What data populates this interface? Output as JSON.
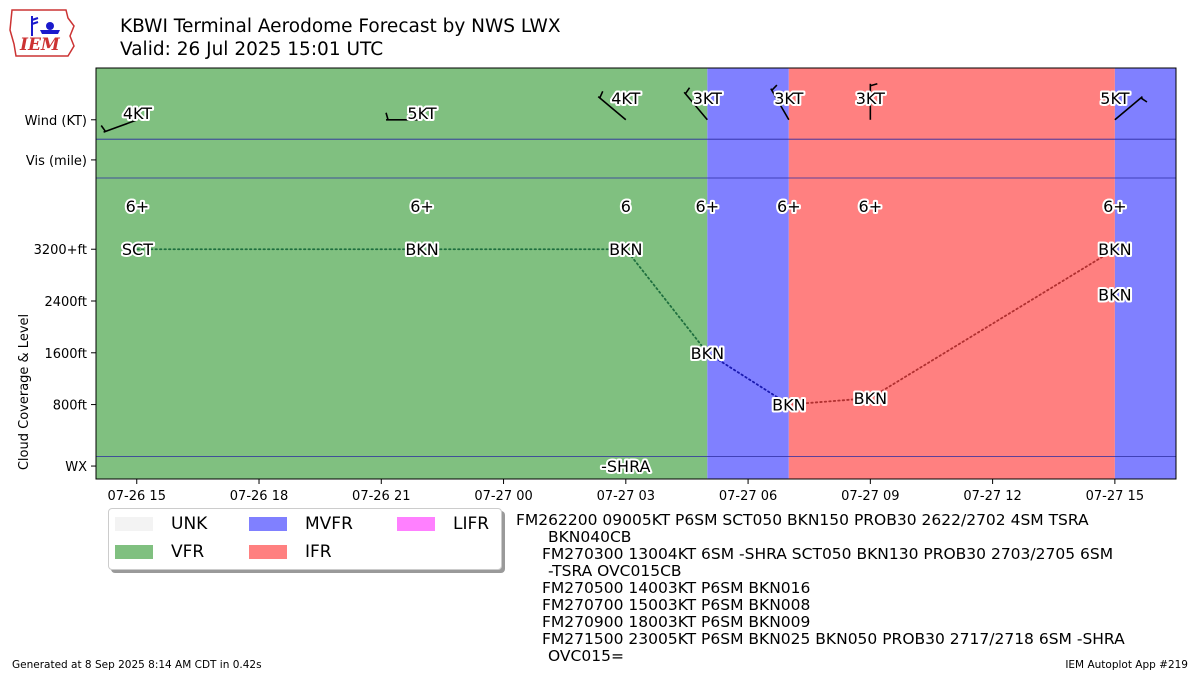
{
  "header": {
    "title": "KBWI Terminal Aerodome Forecast by NWS LWX",
    "subtitle": "Valid: 26 Jul 2025 15:01 UTC",
    "logo_text": "IEM"
  },
  "chart_data": {
    "type": "timeline",
    "x_range": [
      "2025-07-26T14:00",
      "2025-07-27T16:30"
    ],
    "x_ticks": [
      {
        "t": "2025-07-26T15:00",
        "label": "07-26 15"
      },
      {
        "t": "2025-07-26T18:00",
        "label": "07-26 18"
      },
      {
        "t": "2025-07-26T21:00",
        "label": "07-26 21"
      },
      {
        "t": "2025-07-27T00:00",
        "label": "07-27 00"
      },
      {
        "t": "2025-07-27T03:00",
        "label": "07-27 03"
      },
      {
        "t": "2025-07-27T06:00",
        "label": "07-27 06"
      },
      {
        "t": "2025-07-27T09:00",
        "label": "07-27 09"
      },
      {
        "t": "2025-07-27T12:00",
        "label": "07-27 12"
      },
      {
        "t": "2025-07-27T15:00",
        "label": "07-27 15"
      }
    ],
    "y_ticks": [
      {
        "label": "Wind (KT)",
        "value": 5200
      },
      {
        "label": "Vis (mile)",
        "value": 4580
      },
      {
        "label": "3200+ft",
        "value": 3200
      },
      {
        "label": "2400ft",
        "value": 2400
      },
      {
        "label": "1600ft",
        "value": 1600
      },
      {
        "label": "800ft",
        "value": 800
      },
      {
        "label": "WX",
        "value": -150
      }
    ],
    "y_range": [
      -350,
      6000
    ],
    "ylabel": "Cloud Coverage & Level",
    "hlines": [
      4900,
      4300,
      0
    ],
    "category_colors": {
      "UNK": "#f3f3f3",
      "VFR": "#80c080",
      "MVFR": "#8080ff",
      "IFR": "#ff8080",
      "LIFR": "#ff80ff"
    },
    "bands": [
      {
        "start": "2025-07-26T14:00",
        "end": "2025-07-27T05:00",
        "category": "VFR"
      },
      {
        "start": "2025-07-27T05:00",
        "end": "2025-07-27T07:00",
        "category": "MVFR"
      },
      {
        "start": "2025-07-27T07:00",
        "end": "2025-07-27T15:00",
        "category": "IFR"
      },
      {
        "start": "2025-07-27T15:00",
        "end": "2025-07-27T16:30",
        "category": "MVFR"
      }
    ],
    "wind": [
      {
        "t": "2025-07-26T15:01",
        "dir": 250,
        "speed": 4,
        "label": "4KT"
      },
      {
        "t": "2025-07-26T22:00",
        "dir": 270,
        "speed": 5,
        "label": "5KT"
      },
      {
        "t": "2025-07-27T03:00",
        "dir": 310,
        "speed": 4,
        "label": "4KT"
      },
      {
        "t": "2025-07-27T05:00",
        "dir": 320,
        "speed": 3,
        "label": "3KT"
      },
      {
        "t": "2025-07-27T07:00",
        "dir": 330,
        "speed": 3,
        "label": "3KT"
      },
      {
        "t": "2025-07-27T09:00",
        "dir": 360,
        "speed": 3,
        "label": "3KT"
      },
      {
        "t": "2025-07-27T15:00",
        "dir": 50,
        "speed": 5,
        "label": "5KT"
      }
    ],
    "visibility": [
      {
        "t": "2025-07-26T15:01",
        "label": "6+"
      },
      {
        "t": "2025-07-26T22:00",
        "label": "6+"
      },
      {
        "t": "2025-07-27T03:00",
        "label": "6"
      },
      {
        "t": "2025-07-27T05:00",
        "label": "6+"
      },
      {
        "t": "2025-07-27T07:00",
        "label": "6+"
      },
      {
        "t": "2025-07-27T09:00",
        "label": "6+"
      },
      {
        "t": "2025-07-27T15:00",
        "label": "6+"
      }
    ],
    "cloud_points": [
      {
        "t": "2025-07-26T15:01",
        "level": 3200,
        "label": "SCT"
      },
      {
        "t": "2025-07-26T22:00",
        "level": 3200,
        "label": "BKN"
      },
      {
        "t": "2025-07-27T03:00",
        "level": 3200,
        "label": "BKN"
      },
      {
        "t": "2025-07-27T05:00",
        "level": 1600,
        "label": "BKN"
      },
      {
        "t": "2025-07-27T07:00",
        "level": 800,
        "label": "BKN"
      },
      {
        "t": "2025-07-27T09:00",
        "level": 900,
        "label": "BKN"
      },
      {
        "t": "2025-07-27T15:00",
        "level": 3200,
        "label": "BKN"
      }
    ],
    "cloud_extra": [
      {
        "t": "2025-07-27T15:00",
        "level": 2500,
        "label": "BKN"
      }
    ],
    "weather": [
      {
        "t": "2025-07-27T03:00",
        "label": "-SHRA"
      }
    ]
  },
  "legend": {
    "items": [
      {
        "label": "UNK",
        "color": "#f3f3f3"
      },
      {
        "label": "VFR",
        "color": "#80c080"
      },
      {
        "label": "MVFR",
        "color": "#8080ff"
      },
      {
        "label": "IFR",
        "color": "#ff8080"
      },
      {
        "label": "LIFR",
        "color": "#ff80ff"
      }
    ]
  },
  "taf_text": [
    "FM262200 09005KT P6SM SCT050 BKN150 PROB30 2622/2702 4SM TSRA",
    "BKN040CB",
    "FM270300 13004KT 6SM -SHRA SCT050 BKN130 PROB30 2703/2705 6SM",
    "-TSRA OVC015CB",
    "FM270500 14003KT P6SM BKN016",
    "FM270700 15003KT P6SM BKN008",
    "FM270900 18003KT P6SM BKN009",
    "FM271500 23005KT P6SM BKN025 BKN050 PROB30 2717/2718 6SM -SHRA",
    "OVC015="
  ],
  "footer": {
    "left": "Generated at 8 Sep 2025 8:14 AM CDT in 0.42s",
    "right": "IEM Autoplot App #219"
  }
}
